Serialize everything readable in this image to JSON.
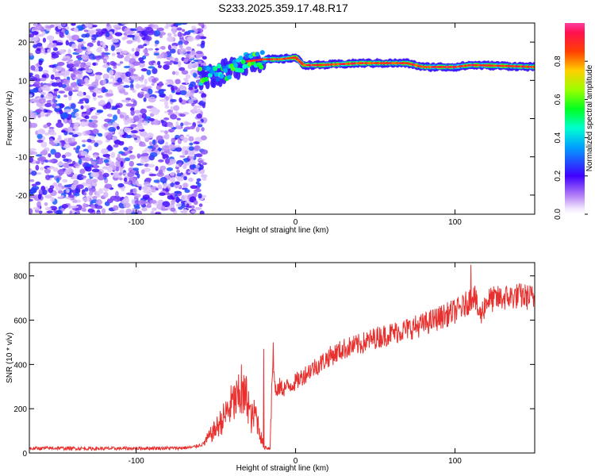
{
  "title": "S233.2025.359.17.48.R17",
  "colors": {
    "snr_line": "#e8302e",
    "speckle": "#7a1fe0",
    "axis": "#000000",
    "background": "#ffffff"
  },
  "chart_data": [
    {
      "type": "heatmap",
      "xlabel": "Height of straight line (km)",
      "ylabel": "Frequency (Hz)",
      "xlim": [
        -167,
        150
      ],
      "ylim": [
        -25,
        25
      ],
      "xticks": [
        -100,
        0,
        100
      ],
      "xtick_labels": [
        "-100",
        "0",
        "100"
      ],
      "yticks": [
        -20,
        -10,
        0,
        10,
        20
      ],
      "ytick_labels": [
        "-20",
        "-10",
        "0",
        "10",
        "20"
      ],
      "grid": false,
      "colorbar": {
        "label": "Normalized spectral amplitude",
        "range": [
          0.0,
          1.0
        ],
        "ticks": [
          0.0,
          0.2,
          0.4,
          0.6,
          0.8
        ],
        "tick_labels": [
          "0.0",
          "0.2",
          "0.4",
          "0.6",
          "0.8"
        ],
        "colormap": "rainbow (white-violet at 0 to red-magenta at 1)"
      },
      "features": [
        {
          "name": "noise",
          "x_range": [
            -167,
            -57
          ],
          "freq_range": [
            -25,
            25
          ],
          "amplitude_range": [
            0.05,
            0.3
          ]
        },
        {
          "name": "signal_ridge",
          "x_range": [
            -70,
            150
          ],
          "freq_track": [
            [
              -60,
              11
            ],
            [
              -45,
              12
            ],
            [
              -40,
              13
            ],
            [
              -30,
              15
            ],
            [
              -20,
              15.5
            ],
            [
              -10,
              15.5
            ],
            [
              0,
              16
            ],
            [
              5,
              14
            ],
            [
              15,
              14
            ],
            [
              40,
              14.5
            ],
            [
              70,
              14.5
            ],
            [
              80,
              13.5
            ],
            [
              100,
              13.5
            ],
            [
              110,
              14
            ],
            [
              130,
              13.8
            ],
            [
              150,
              13.5
            ]
          ],
          "amplitude_range": [
            0.4,
            0.9
          ]
        }
      ]
    },
    {
      "type": "line",
      "xlabel": "Height of straight line (km)",
      "ylabel": "SNR (10 * v/v)",
      "xlim": [
        -167,
        150
      ],
      "ylim": [
        0,
        860
      ],
      "xticks": [
        -100,
        0,
        100
      ],
      "xtick_labels": [
        "-100",
        "0",
        "100"
      ],
      "yticks": [
        0,
        200,
        400,
        600,
        800
      ],
      "ytick_labels": [
        "0",
        "200",
        "400",
        "600",
        "800"
      ],
      "grid": false,
      "series": [
        {
          "x": [
            -167,
            -150,
            -130,
            -110,
            -90,
            -75,
            -65,
            -58,
            -50,
            -45,
            -40,
            -35,
            -30,
            -28,
            -25,
            -22,
            -20,
            -16,
            -15,
            -14,
            -12,
            -10,
            -8,
            -5,
            0,
            5,
            10,
            15,
            20,
            25,
            30,
            40,
            50,
            60,
            70,
            80,
            90,
            100,
            105,
            108,
            110,
            112,
            114,
            116,
            120,
            130,
            140,
            150
          ],
          "y": [
            20,
            22,
            20,
            20,
            22,
            22,
            25,
            40,
            110,
            160,
            220,
            250,
            250,
            150,
            180,
            80,
            30,
            20,
            320,
            380,
            260,
            300,
            290,
            300,
            320,
            350,
            380,
            400,
            430,
            450,
            470,
            490,
            520,
            540,
            560,
            580,
            610,
            640,
            660,
            680,
            700,
            720,
            650,
            620,
            690,
            700,
            710,
            700
          ],
          "spikes": [
            [
              -34,
              400
            ],
            [
              -20,
              470
            ],
            [
              -14,
              500
            ],
            [
              110,
              390
            ],
            [
              110,
              850
            ]
          ]
        }
      ]
    }
  ]
}
